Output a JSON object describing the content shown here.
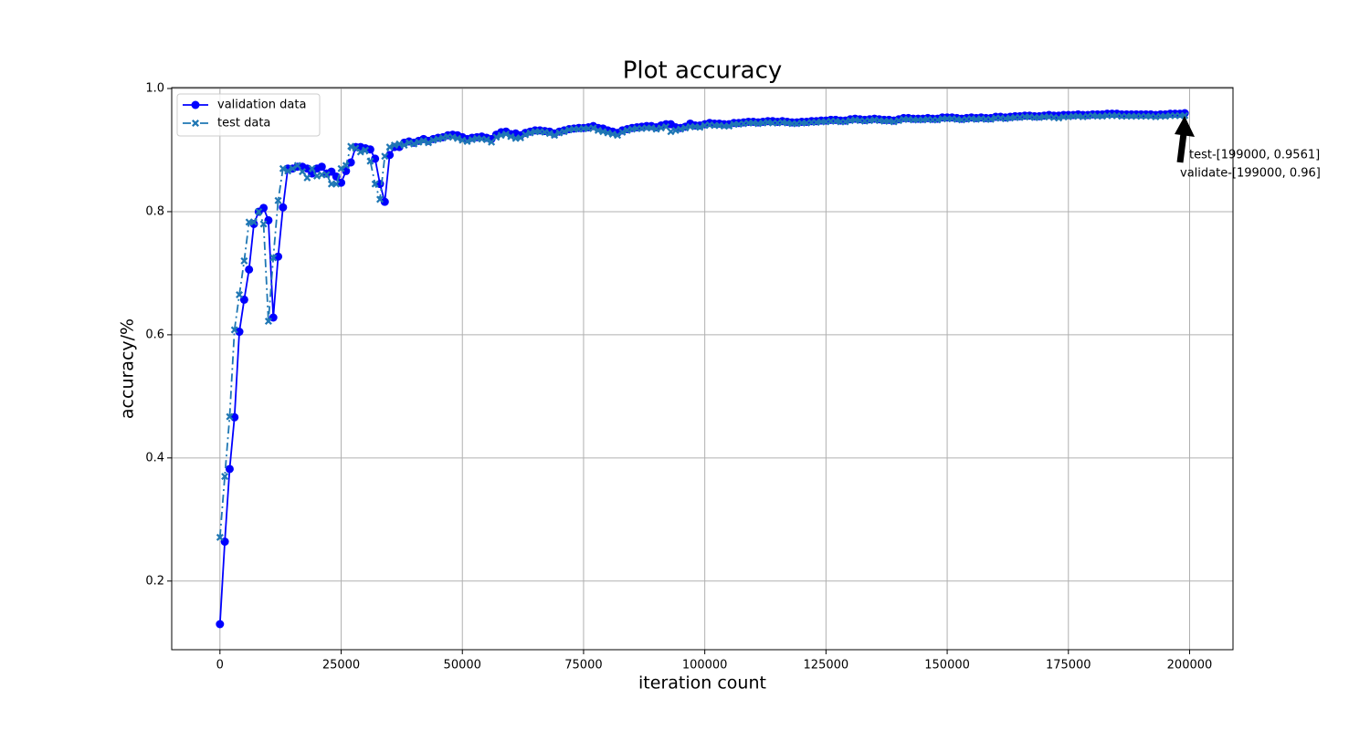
{
  "chart_data": {
    "type": "line",
    "title": "Plot accuracy",
    "x_label": "iteration count",
    "y_label": "accuracy/%",
    "x": [
      0,
      1000,
      2000,
      3000,
      4000,
      5000,
      6000,
      7000,
      8000,
      9000,
      10000,
      11000,
      12000,
      13000,
      14000,
      15000,
      16000,
      17000,
      18000,
      19000,
      20000,
      21000,
      22000,
      23000,
      24000,
      25000,
      26000,
      27000,
      28000,
      29000,
      30000,
      31000,
      32000,
      33000,
      34000,
      35000,
      36000,
      37000,
      38000,
      39000,
      40000,
      41000,
      42000,
      43000,
      44000,
      45000,
      46000,
      47000,
      48000,
      49000,
      50000,
      51000,
      52000,
      53000,
      54000,
      55000,
      56000,
      57000,
      58000,
      59000,
      60000,
      61000,
      62000,
      63000,
      64000,
      65000,
      66000,
      67000,
      68000,
      69000,
      70000,
      71000,
      72000,
      73000,
      74000,
      75000,
      76000,
      77000,
      78000,
      79000,
      80000,
      81000,
      82000,
      83000,
      84000,
      85000,
      86000,
      87000,
      88000,
      89000,
      90000,
      91000,
      92000,
      93000,
      94000,
      95000,
      96000,
      97000,
      98000,
      99000,
      100000,
      101000,
      102000,
      103000,
      104000,
      105000,
      106000,
      107000,
      108000,
      109000,
      110000,
      111000,
      112000,
      113000,
      114000,
      115000,
      116000,
      117000,
      118000,
      119000,
      120000,
      121000,
      122000,
      123000,
      124000,
      125000,
      126000,
      127000,
      128000,
      129000,
      130000,
      131000,
      132000,
      133000,
      134000,
      135000,
      136000,
      137000,
      138000,
      139000,
      140000,
      141000,
      142000,
      143000,
      144000,
      145000,
      146000,
      147000,
      148000,
      149000,
      150000,
      151000,
      152000,
      153000,
      154000,
      155000,
      156000,
      157000,
      158000,
      159000,
      160000,
      161000,
      162000,
      163000,
      164000,
      165000,
      166000,
      167000,
      168000,
      169000,
      170000,
      171000,
      172000,
      173000,
      174000,
      175000,
      176000,
      177000,
      178000,
      179000,
      180000,
      181000,
      182000,
      183000,
      184000,
      185000,
      186000,
      187000,
      188000,
      189000,
      190000,
      191000,
      192000,
      193000,
      194000,
      195000,
      196000,
      197000,
      198000,
      199000
    ],
    "series": [
      {
        "name": "validation data",
        "color": "#0000ff",
        "linestyle": "solid",
        "marker": "o",
        "values": [
          0.13,
          0.264,
          0.382,
          0.466,
          0.605,
          0.657,
          0.706,
          0.78,
          0.8,
          0.806,
          0.786,
          0.628,
          0.727,
          0.807,
          0.87,
          0.87,
          0.873,
          0.873,
          0.87,
          0.862,
          0.87,
          0.873,
          0.862,
          0.865,
          0.857,
          0.847,
          0.866,
          0.88,
          0.905,
          0.905,
          0.903,
          0.901,
          0.886,
          0.845,
          0.816,
          0.892,
          0.905,
          0.905,
          0.912,
          0.914,
          0.912,
          0.915,
          0.918,
          0.915,
          0.918,
          0.92,
          0.921,
          0.924,
          0.925,
          0.924,
          0.921,
          0.918,
          0.92,
          0.921,
          0.922,
          0.92,
          0.918,
          0.925,
          0.929,
          0.93,
          0.926,
          0.927,
          0.924,
          0.928,
          0.93,
          0.932,
          0.932,
          0.931,
          0.93,
          0.927,
          0.93,
          0.932,
          0.934,
          0.935,
          0.936,
          0.936,
          0.937,
          0.939,
          0.936,
          0.935,
          0.932,
          0.93,
          0.928,
          0.932,
          0.934,
          0.936,
          0.937,
          0.938,
          0.939,
          0.939,
          0.937,
          0.94,
          0.942,
          0.942,
          0.937,
          0.936,
          0.938,
          0.943,
          0.94,
          0.94,
          0.942,
          0.944,
          0.943,
          0.943,
          0.942,
          0.942,
          0.944,
          0.944,
          0.945,
          0.946,
          0.946,
          0.945,
          0.946,
          0.947,
          0.947,
          0.946,
          0.947,
          0.946,
          0.945,
          0.945,
          0.946,
          0.946,
          0.947,
          0.947,
          0.948,
          0.948,
          0.949,
          0.949,
          0.948,
          0.948,
          0.95,
          0.951,
          0.95,
          0.949,
          0.95,
          0.951,
          0.95,
          0.949,
          0.949,
          0.948,
          0.95,
          0.952,
          0.952,
          0.951,
          0.951,
          0.951,
          0.952,
          0.951,
          0.951,
          0.953,
          0.953,
          0.953,
          0.952,
          0.951,
          0.952,
          0.953,
          0.952,
          0.953,
          0.952,
          0.952,
          0.954,
          0.954,
          0.953,
          0.954,
          0.955,
          0.955,
          0.956,
          0.956,
          0.955,
          0.955,
          0.956,
          0.957,
          0.956,
          0.956,
          0.957,
          0.957,
          0.957,
          0.958,
          0.957,
          0.957,
          0.958,
          0.958,
          0.958,
          0.959,
          0.959,
          0.959,
          0.958,
          0.958,
          0.958,
          0.958,
          0.958,
          0.958,
          0.958,
          0.957,
          0.958,
          0.958,
          0.959,
          0.959,
          0.959,
          0.96
        ]
      },
      {
        "name": "test data",
        "color": "#1f77b4",
        "linestyle": "dashdot",
        "marker": "X",
        "values": [
          0.271,
          0.37,
          0.467,
          0.608,
          0.665,
          0.72,
          0.783,
          0.783,
          0.8,
          0.78,
          0.622,
          0.725,
          0.818,
          0.87,
          0.866,
          0.87,
          0.875,
          0.865,
          0.855,
          0.87,
          0.858,
          0.86,
          0.86,
          0.845,
          0.845,
          0.87,
          0.875,
          0.906,
          0.903,
          0.897,
          0.9,
          0.882,
          0.845,
          0.82,
          0.89,
          0.905,
          0.908,
          0.91,
          0.908,
          0.912,
          0.91,
          0.913,
          0.915,
          0.912,
          0.916,
          0.918,
          0.92,
          0.922,
          0.921,
          0.919,
          0.916,
          0.914,
          0.917,
          0.919,
          0.918,
          0.917,
          0.913,
          0.921,
          0.924,
          0.926,
          0.922,
          0.919,
          0.92,
          0.925,
          0.928,
          0.93,
          0.93,
          0.929,
          0.927,
          0.924,
          0.928,
          0.93,
          0.933,
          0.934,
          0.934,
          0.935,
          0.935,
          0.936,
          0.932,
          0.93,
          0.928,
          0.926,
          0.924,
          0.929,
          0.932,
          0.934,
          0.935,
          0.935,
          0.936,
          0.936,
          0.934,
          0.936,
          0.938,
          0.93,
          0.932,
          0.934,
          0.936,
          0.938,
          0.938,
          0.937,
          0.94,
          0.941,
          0.94,
          0.94,
          0.939,
          0.939,
          0.942,
          0.942,
          0.943,
          0.944,
          0.944,
          0.943,
          0.944,
          0.945,
          0.944,
          0.944,
          0.945,
          0.944,
          0.943,
          0.943,
          0.944,
          0.944,
          0.945,
          0.945,
          0.946,
          0.946,
          0.947,
          0.947,
          0.946,
          0.946,
          0.948,
          0.949,
          0.948,
          0.947,
          0.948,
          0.949,
          0.948,
          0.947,
          0.947,
          0.946,
          0.948,
          0.95,
          0.95,
          0.949,
          0.949,
          0.949,
          0.95,
          0.949,
          0.949,
          0.951,
          0.951,
          0.951,
          0.95,
          0.949,
          0.95,
          0.951,
          0.95,
          0.951,
          0.95,
          0.95,
          0.952,
          0.952,
          0.951,
          0.952,
          0.953,
          0.953,
          0.954,
          0.954,
          0.953,
          0.953,
          0.954,
          0.954,
          0.953,
          0.952,
          0.954,
          0.954,
          0.955,
          0.955,
          0.954,
          0.955,
          0.956,
          0.955,
          0.955,
          0.956,
          0.956,
          0.956,
          0.955,
          0.955,
          0.955,
          0.955,
          0.955,
          0.955,
          0.955,
          0.954,
          0.955,
          0.955,
          0.956,
          0.956,
          0.956,
          0.9561
        ]
      }
    ],
    "annotations": [
      "test-[199000, 0.9561]",
      "validate-[199000, 0.96]"
    ],
    "xlim": [
      -9950,
      208950
    ],
    "xticks": [
      0,
      25000,
      50000,
      75000,
      100000,
      125000,
      150000,
      175000,
      200000
    ],
    "ylim": [
      0.0885,
      1.0015
    ],
    "yticks": [
      0.2,
      0.4,
      0.6,
      0.8,
      {
        "value": 1,
        "label": "1.0"
      }
    ],
    "grid": true,
    "legend": "upper left"
  }
}
